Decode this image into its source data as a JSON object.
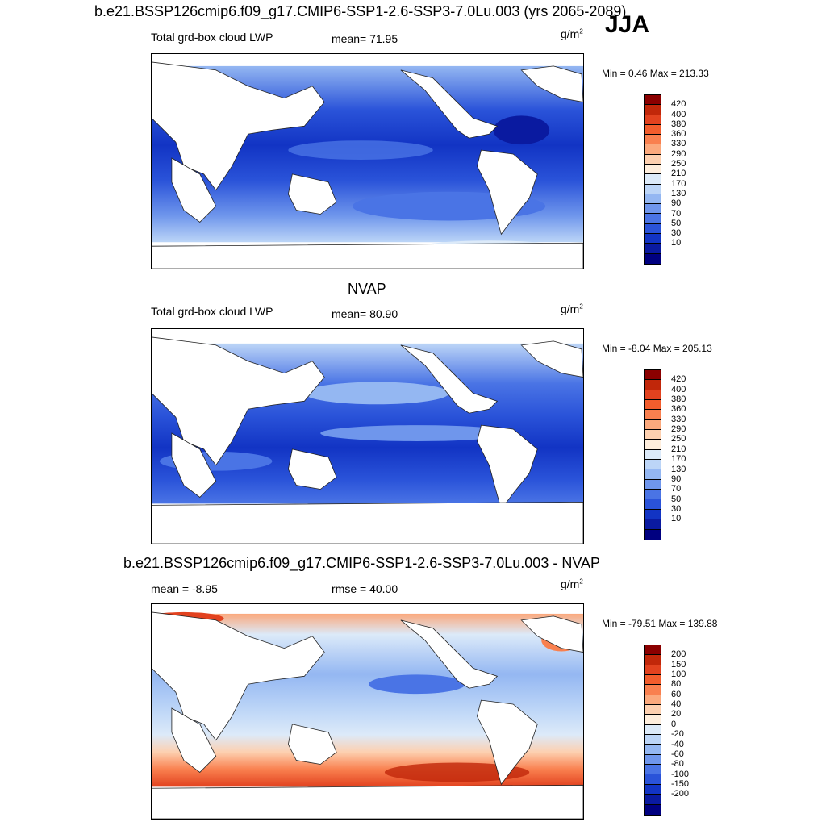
{
  "season": "JJA",
  "panels": [
    {
      "title": "b.e21.BSSP126cmip6.f09_g17.CMIP6-SSP1-2.6-SSP3-7.0Lu.003 (yrs 2065-2089)",
      "left_label": "Total grd-box cloud LWP",
      "center_label": "mean=  71.95",
      "units": "g/m",
      "units_exp": "2",
      "minmax": "Min =   0.46 Max = 213.33",
      "colorbar": {
        "labels": [
          "420",
          "400",
          "380",
          "360",
          "330",
          "290",
          "250",
          "210",
          "170",
          "130",
          "90",
          "70",
          "50",
          "30",
          "10"
        ],
        "colors": [
          "#8b0000",
          "#c1270a",
          "#e2421f",
          "#f25d2d",
          "#f9804f",
          "#fba97d",
          "#fdd0b0",
          "#feeedd",
          "#dceaf9",
          "#bcd5f7",
          "#94b7f2",
          "#6f96ec",
          "#4a74e5",
          "#2a53d9",
          "#1234c4",
          "#0a1aa0",
          "#000080"
        ]
      }
    },
    {
      "title": "NVAP",
      "left_label": "Total grd-box cloud LWP",
      "center_label": "mean=  80.90",
      "units": "g/m",
      "units_exp": "2",
      "minmax": "Min =  -8.04 Max = 205.13",
      "colorbar": {
        "labels": [
          "420",
          "400",
          "380",
          "360",
          "330",
          "290",
          "250",
          "210",
          "170",
          "130",
          "90",
          "70",
          "50",
          "30",
          "10"
        ],
        "colors": [
          "#8b0000",
          "#c1270a",
          "#e2421f",
          "#f25d2d",
          "#f9804f",
          "#fba97d",
          "#fdd0b0",
          "#feeedd",
          "#dceaf9",
          "#bcd5f7",
          "#94b7f2",
          "#6f96ec",
          "#4a74e5",
          "#2a53d9",
          "#1234c4",
          "#0a1aa0",
          "#000080"
        ]
      }
    },
    {
      "title": "b.e21.BSSP126cmip6.f09_g17.CMIP6-SSP1-2.6-SSP3-7.0Lu.003 - NVAP",
      "left_label": "mean =  -8.95",
      "center_label": "rmse =  40.00",
      "units": "g/m",
      "units_exp": "2",
      "minmax": "Min = -79.51 Max = 139.88",
      "colorbar": {
        "labels": [
          "200",
          "150",
          "100",
          "80",
          "60",
          "40",
          "20",
          "0",
          "-20",
          "-40",
          "-60",
          "-80",
          "-100",
          "-150",
          "-200"
        ],
        "colors": [
          "#8b0000",
          "#c1270a",
          "#e2421f",
          "#f25d2d",
          "#f9804f",
          "#fba97d",
          "#fdd0b0",
          "#feeedd",
          "#dceaf9",
          "#bcd5f7",
          "#94b7f2",
          "#6f96ec",
          "#4a74e5",
          "#2a53d9",
          "#1234c4",
          "#0a1aa0",
          "#000080"
        ]
      }
    }
  ]
}
